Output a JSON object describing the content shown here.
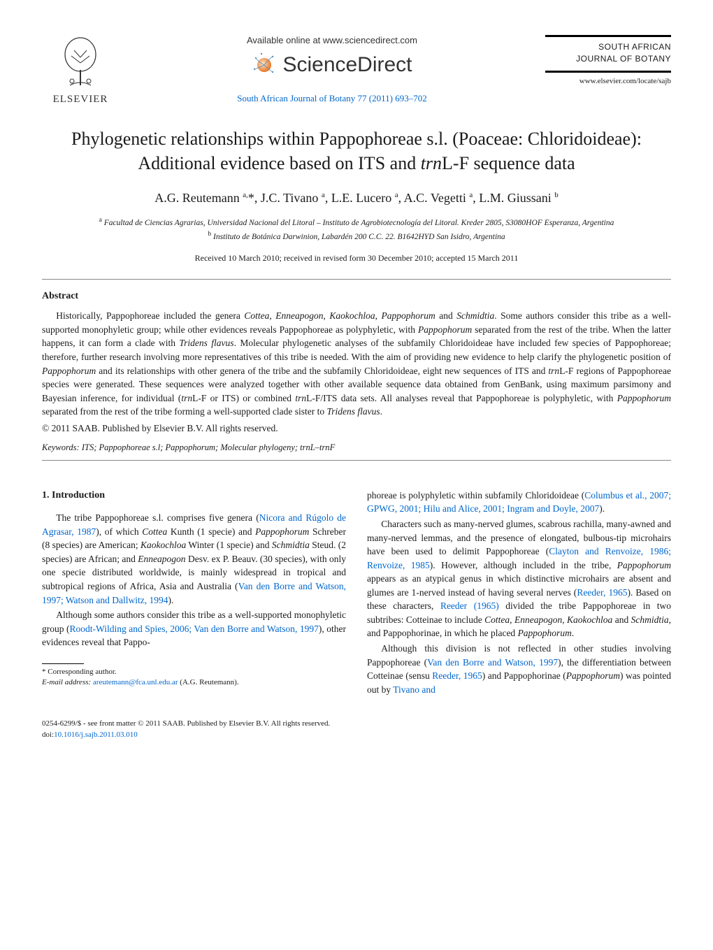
{
  "header": {
    "publisher_name": "ELSEVIER",
    "available_online": "Available online at www.sciencedirect.com",
    "sciencedirect": "ScienceDirect",
    "journal_ref": "South African Journal of Botany 77 (2011) 693–702",
    "journal_badge_line1": "SOUTH AFRICAN",
    "journal_badge_line2": "JOURNAL OF BOTANY",
    "journal_url": "www.elsevier.com/locate/sajb"
  },
  "title_html": "Phylogenetic relationships within Pappophoreae s.l. (Poaceae: Chloridoideae): Additional evidence based on ITS and <span class=\"ital\">trn</span>L-F sequence data",
  "authors_html": "A.G. Reutemann <sup>a,</sup>*, J.C. Tivano <sup>a</sup>, L.E. Lucero <sup>a</sup>, A.C. Vegetti <sup>a</sup>, L.M. Giussani <sup>b</sup>",
  "affiliations": {
    "a": "Facultad de Ciencias Agrarias, Universidad Nacional del Litoral – Instituto de Agrobiotecnología del Litoral. Kreder 2805, S3080HOF Esperanza, Argentina",
    "b": "Instituto de Botánica Darwinion, Labardén 200 C.C. 22. B1642HYD San Isidro, Argentina"
  },
  "dates": "Received 10 March 2010; received in revised form 30 December 2010; accepted 15 March 2011",
  "abstract": {
    "heading": "Abstract",
    "body_html": "Historically, Pappophoreae included the genera <span class=\"ital\">Cottea</span>, <span class=\"ital\">Enneapogon</span>, <span class=\"ital\">Kaokochloa</span>, <span class=\"ital\">Pappophorum</span> and <span class=\"ital\">Schmidtia</span>. Some authors consider this tribe as a well-supported monophyletic group; while other evidences reveals Pappophoreae as polyphyletic, with <span class=\"ital\">Pappophorum</span> separated from the rest of the tribe. When the latter happens, it can form a clade with <span class=\"ital\">Tridens flavus</span>. Molecular phylogenetic analyses of the subfamily Chloridoideae have included few species of Pappophoreae; therefore, further research involving more representatives of this tribe is needed. With the aim of providing new evidence to help clarify the phylogenetic position of <span class=\"ital\">Pappophorum</span> and its relationships with other genera of the tribe and the subfamily Chloridoideae, eight new sequences of ITS and <span class=\"ital\">trn</span>L-F regions of Pappophoreae species were generated. These sequences were analyzed together with other available sequence data obtained from GenBank, using maximum parsimony and Bayesian inference, for individual (<span class=\"ital\">trn</span>L-F or ITS) or combined <span class=\"ital\">trn</span>L-F/ITS data sets. All analyses reveal that Pappophoreae is polyphyletic, with <span class=\"ital\">Pappophorum</span> separated from the rest of the tribe forming a well-supported clade sister to <span class=\"ital\">Tridens flavus</span>.",
    "copyright": "© 2011 SAAB. Published by Elsevier B.V. All rights reserved."
  },
  "keywords_html": "<span class=\"kw-label\">Keywords:</span> ITS; Pappophoreae s.l; <span class=\"ital\">Pappophorum</span>; Molecular phylogeny; <span class=\"ital\">trn</span>L–<span class=\"ital\">trn</span>F",
  "body": {
    "section_heading": "1. Introduction",
    "left": {
      "p1_html": "The tribe Pappophoreae s.l. comprises five genera (<span class=\"blue-ref\">Nicora and Rúgolo de Agrasar, 1987</span>), of which <span class=\"ital\">Cottea</span> Kunth (1 specie) and <span class=\"ital\">Pappophorum</span> Schreber (8 species) are American; <span class=\"ital\">Kaokochloa</span> Winter (1 specie) and <span class=\"ital\">Schmidtia</span> Steud. (2 species) are African; and <span class=\"ital\">Enneapogon</span> Desv. ex P. Beauv. (30 species), with only one specie distributed worldwide, is mainly widespread in tropical and subtropical regions of Africa, Asia and Australia (<span class=\"blue-ref\">Van den Borre and Watson, 1997; Watson and Dallwitz, 1994</span>).",
      "p2_html": "Although some authors consider this tribe as a well-supported monophyletic group (<span class=\"blue-ref\">Roodt-Wilding and Spies, 2006; Van den Borre and Watson, 1997</span>), other evidences reveal that Pappo-"
    },
    "right": {
      "p1_html": "phoreae is polyphyletic within subfamily Chloridoideae (<span class=\"blue-ref\">Columbus et al., 2007; GPWG, 2001; Hilu and Alice, 2001; Ingram and Doyle, 2007</span>).",
      "p2_html": "Characters such as many-nerved glumes, scabrous rachilla, many-awned and many-nerved lemmas, and the presence of elongated, bulbous-tip microhairs have been used to delimit Pappophoreae (<span class=\"blue-ref\">Clayton and Renvoize, 1986; Renvoize, 1985</span>). However, although included in the tribe, <span class=\"ital\">Pappophorum</span> appears as an atypical genus in which distinctive microhairs are absent and glumes are 1-nerved instead of having several nerves (<span class=\"blue-ref\">Reeder, 1965</span>). Based on these characters, <span class=\"blue-ref\">Reeder (1965)</span> divided the tribe Pappophoreae in two subtribes: Cotteinae to include <span class=\"ital\">Cottea</span>, <span class=\"ital\">Enneapogon</span>, <span class=\"ital\">Kaokochloa</span> and <span class=\"ital\">Schmidtia</span>, and Pappophorinae, in which he placed <span class=\"ital\">Pappophorum</span>.",
      "p3_html": "Although this division is not reflected in other studies involving Pappophoreae (<span class=\"blue-ref\">Van den Borre and Watson, 1997</span>), the differentiation between Cotteinae (sensu <span class=\"blue-ref\">Reeder, 1965</span>) and Pappophorinae (<span class=\"ital\">Pappophorum</span>) was pointed out by <span class=\"blue-ref\">Tivano and</span>"
    }
  },
  "footnote": {
    "corr": "* Corresponding author.",
    "email_label": "E-mail address:",
    "email": "areutemann@fca.unl.edu.ar",
    "email_tail": "(A.G. Reutemann)."
  },
  "footer": {
    "line1": "0254-6299/$ - see front matter © 2011 SAAB. Published by Elsevier B.V. All rights reserved.",
    "line2_label": "doi:",
    "line2_doi": "10.1016/j.sajb.2011.03.010"
  },
  "colors": {
    "link": "#0066cc",
    "text": "#1a1a1a",
    "rule": "#888888",
    "elsevier_orange": "#e97826"
  }
}
